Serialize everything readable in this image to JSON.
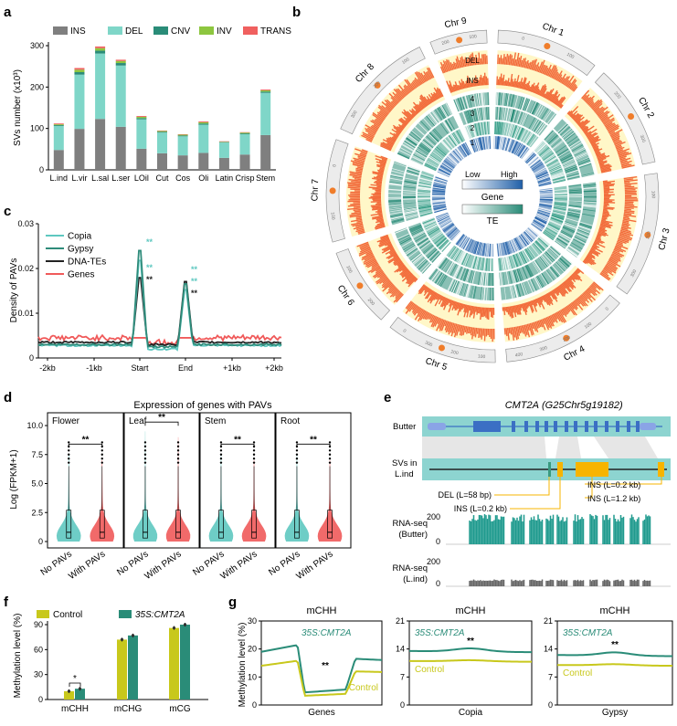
{
  "panels": {
    "a": {
      "letter": "a",
      "ylabel": "SVs number (x10³)"
    },
    "b": {
      "letter": "b"
    },
    "c": {
      "letter": "c",
      "ylabel": "Density of PAVs"
    },
    "d": {
      "letter": "d",
      "title": "Expression of genes with PAVs",
      "ylabel": "Log (FPKM+1)"
    },
    "e": {
      "letter": "e"
    },
    "f": {
      "letter": "f",
      "ylabel": "Methylation level (%)"
    },
    "g": {
      "letter": "g",
      "ylabel": "Methylation level (%)"
    }
  },
  "colors": {
    "INS": "#7f7f7f",
    "DEL": "#7fd6c8",
    "CNV": "#2a8c78",
    "INV": "#8dc63f",
    "TRANS": "#f0605f",
    "copia": "#5ec8c0",
    "gypsy": "#2e8b7a",
    "dna": "#222222",
    "genes": "#f05a5a",
    "control": "#c8c81c",
    "cmt2a": "#2a8c78"
  },
  "chart_data": [
    {
      "id": "a",
      "type": "bar",
      "stacked": true,
      "categories": [
        "L.ind",
        "L.vir",
        "L.sal",
        "L.ser",
        "LOil",
        "Cut",
        "Cos",
        "Oli",
        "Latin",
        "Crisp",
        "Stem"
      ],
      "series": [
        {
          "name": "INS",
          "values": [
            48,
            99,
            123,
            104,
            51,
            40,
            35,
            41,
            29,
            37,
            84
          ]
        },
        {
          "name": "DEL",
          "values": [
            58,
            131,
            158,
            148,
            71,
            50,
            46,
            68,
            37,
            49,
            102
          ]
        },
        {
          "name": "CNV",
          "values": [
            2,
            6,
            7,
            6,
            3,
            2,
            2,
            3,
            1,
            2,
            3
          ]
        },
        {
          "name": "INV",
          "values": [
            2,
            6,
            6,
            5,
            3,
            2,
            2,
            3,
            1,
            2,
            3
          ]
        },
        {
          "name": "TRANS",
          "values": [
            2,
            4,
            4,
            3,
            2,
            1,
            1,
            2,
            1,
            1,
            2
          ]
        }
      ],
      "ylim": [
        0,
        300
      ],
      "yticks": [
        0,
        100,
        200,
        300
      ],
      "legend": [
        "INS",
        "DEL",
        "CNV",
        "INV",
        "TRANS"
      ]
    },
    {
      "id": "b",
      "type": "circos",
      "chromosomes": [
        {
          "name": "Chr 1",
          "ticks": [
            "0",
            "100"
          ]
        },
        {
          "name": "Chr 2",
          "ticks": [
            "200",
            "300"
          ]
        },
        {
          "name": "Chr 3",
          "ticks": [
            "100",
            "200",
            "300"
          ]
        },
        {
          "name": "Chr 4",
          "ticks": [
            "0",
            "100",
            "200",
            "300",
            "400"
          ]
        },
        {
          "name": "Chr 5",
          "ticks": [
            "100",
            "200",
            "300",
            "0"
          ]
        },
        {
          "name": "Chr 6",
          "ticks": [
            "200",
            "100"
          ]
        },
        {
          "name": "Chr 7",
          "ticks": [
            "100",
            "0"
          ]
        },
        {
          "name": "Chr 8",
          "ticks": [
            "300",
            "200",
            "100"
          ]
        },
        {
          "name": "Chr 9",
          "ticks": [
            "200",
            "100"
          ]
        }
      ],
      "track_labels": [
        "DEL",
        "INS",
        "4",
        "3",
        "2",
        "1"
      ],
      "legend": {
        "low": "Low",
        "high": "High",
        "gene": "Gene",
        "te": "TE"
      }
    },
    {
      "id": "c",
      "type": "line",
      "x": [
        "-2kb",
        "-1kb",
        "Start",
        "End",
        "+1kb",
        "+2kb"
      ],
      "series": [
        {
          "name": "Copia"
        },
        {
          "name": "Gypsy"
        },
        {
          "name": "DNA-TEs"
        },
        {
          "name": "Genes"
        }
      ],
      "ylim": [
        0,
        0.03
      ],
      "yticks": [
        "0",
        "0.01",
        "0.02",
        "0.03"
      ],
      "annotations": [
        "**",
        "**",
        "**",
        "**",
        "**",
        "**"
      ]
    },
    {
      "id": "d",
      "type": "violin",
      "facets": [
        "Flower",
        "Leaf",
        "Stem",
        "Root"
      ],
      "categories": [
        "No PAVs",
        "With PAVs"
      ],
      "yticks": [
        "0",
        "2.5",
        "5.0",
        "7.5",
        "10.0"
      ],
      "ylim": [
        0,
        10
      ],
      "sig": "**"
    },
    {
      "id": "e",
      "type": "gene-model",
      "title": "CMT2A",
      "gene_id": "(G25Chr5g19182)",
      "rows": [
        "Butter",
        "SVs in",
        "L.ind"
      ],
      "svs": [
        "DEL (L=58 bp)",
        "INS (L=0.2 kb)",
        "INS (L=0.2 kb)",
        "INS (L=1.2 kb)"
      ],
      "tracks": [
        {
          "name": "RNA-seq",
          "sub": "(Butter)",
          "ymax": "200",
          "ymin": "0"
        },
        {
          "name": "RNA-seq",
          "sub": "(L.ind)",
          "ymax": "200",
          "ymin": "0"
        }
      ]
    },
    {
      "id": "f",
      "type": "bar",
      "categories": [
        "mCHH",
        "mCHG",
        "mCG"
      ],
      "series": [
        {
          "name": "Control",
          "values": [
            10,
            72,
            86
          ]
        },
        {
          "name": "35S:CMT2A",
          "values": [
            13,
            77,
            90
          ]
        }
      ],
      "ylim": [
        0,
        90
      ],
      "yticks": [
        "0",
        "30",
        "60",
        "90"
      ],
      "sig": "*"
    },
    {
      "id": "g",
      "type": "line",
      "facets": [
        {
          "title": "mCHH",
          "xlabel": "Genes",
          "yticks": [
            "0",
            "10",
            "20",
            "30"
          ],
          "ylim": [
            0,
            30
          ]
        },
        {
          "title": "mCHH",
          "xlabel": "Copia",
          "yticks": [
            "0",
            "7",
            "14",
            "21"
          ],
          "ylim": [
            0,
            21
          ]
        },
        {
          "title": "mCHH",
          "xlabel": "Gypsy",
          "yticks": [
            "0",
            "7",
            "14",
            "21"
          ],
          "ylim": [
            0,
            21
          ]
        }
      ],
      "series": [
        {
          "name": "35S:CMT2A"
        },
        {
          "name": "Control"
        }
      ],
      "sig": "**"
    }
  ]
}
